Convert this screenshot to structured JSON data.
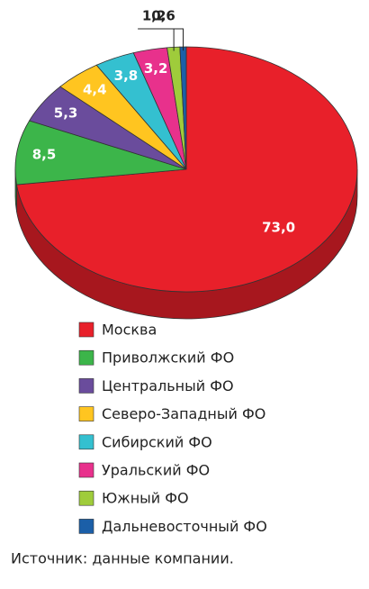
{
  "chart_data": {
    "type": "pie",
    "categories": [
      "Москва",
      "Приволжский ФО",
      "Центральный ФО",
      "Северо-Западный ФО",
      "Сибирский ФО",
      "Уральский ФО",
      "Южный ФО",
      "Дальневосточный ФО"
    ],
    "values": [
      73.0,
      8.5,
      5.3,
      4.4,
      3.8,
      3.2,
      1.2,
      0.6
    ],
    "value_labels": [
      "73,0",
      "8,5",
      "5,3",
      "4,4",
      "3,8",
      "3,2",
      "1,2",
      "0,6"
    ],
    "colors": [
      "#e8202a",
      "#3cb54a",
      "#6a4c9c",
      "#ffc520",
      "#34c0d0",
      "#e8318c",
      "#9fcc3b",
      "#1b5fa8"
    ],
    "source": "Источник: данные компании."
  }
}
